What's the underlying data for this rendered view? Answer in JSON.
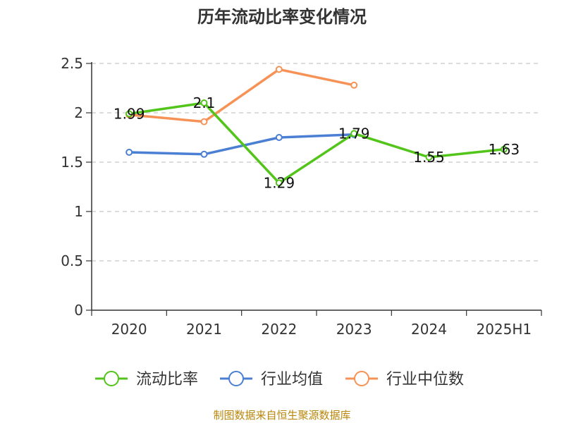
{
  "source": "制图数据来自恒生聚源数据库",
  "colors": {
    "current_ratio": "#52c41a",
    "industry_avg": "#4a7fd4",
    "industry_median": "#f79256"
  },
  "chart_data": {
    "type": "line",
    "title": "历年流动比率变化情况",
    "categories": [
      "2020",
      "2021",
      "2022",
      "2023",
      "2024",
      "2025H1"
    ],
    "ylim": [
      0,
      2.5
    ],
    "yticks": [
      "0",
      "0.5",
      "1",
      "1.5",
      "2",
      "2.5"
    ],
    "grid": true,
    "legend_position": "bottom",
    "series": [
      {
        "name": "流动比率",
        "values": [
          1.99,
          2.1,
          1.29,
          1.79,
          1.55,
          1.63
        ],
        "labels": [
          "1.99",
          "2.1",
          "1.29",
          "1.79",
          "1.55",
          "1.63"
        ]
      },
      {
        "name": "行业均值",
        "values": [
          1.6,
          1.58,
          1.75,
          1.78,
          null,
          null
        ]
      },
      {
        "name": "行业中位数",
        "values": [
          1.98,
          1.91,
          2.44,
          2.28,
          null,
          null
        ]
      }
    ]
  }
}
